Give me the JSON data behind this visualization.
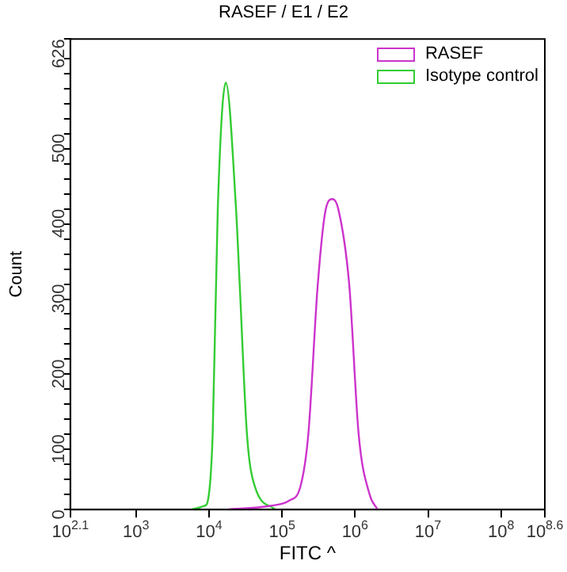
{
  "chart_data": {
    "type": "line",
    "title": "RASEF / E1 / E2",
    "xlabel": "FITC ^",
    "ylabel": "Count",
    "log": "x",
    "xlim": [
      125.9,
      398107171
    ],
    "xticks": [
      {
        "value": 125.9,
        "label": "10$^{2.1}$"
      },
      {
        "value": 1000,
        "label": "10$^{3}$"
      },
      {
        "value": 10000,
        "label": "10$^{4}$"
      },
      {
        "value": 100000,
        "label": "10$^{5}$"
      },
      {
        "value": 1000000,
        "label": "10$^{6}$"
      },
      {
        "value": 10000000,
        "label": "10$^{7}$"
      },
      {
        "value": 100000000,
        "label": "10$^{8}$"
      },
      {
        "value": 398107171,
        "label": "10$^{8.6}$"
      }
    ],
    "ylim": [
      0,
      626
    ],
    "yticks": [
      0,
      {
        "value": 20,
        "label": null
      },
      {
        "value": 40,
        "label": null
      },
      {
        "value": 60,
        "label": null
      },
      {
        "value": 80,
        "label": null
      },
      100,
      {
        "value": 120,
        "label": null
      },
      {
        "value": 140,
        "label": null
      },
      {
        "value": 160,
        "label": null
      },
      {
        "value": 180,
        "label": null
      },
      200,
      {
        "value": 220,
        "label": null
      },
      {
        "value": 240,
        "label": null
      },
      {
        "value": 260,
        "label": null
      },
      {
        "value": 280,
        "label": null
      },
      300,
      {
        "value": 320,
        "label": null
      },
      {
        "value": 340,
        "label": null
      },
      {
        "value": 360,
        "label": null
      },
      {
        "value": 380,
        "label": null
      },
      400,
      {
        "value": 420,
        "label": null
      },
      {
        "value": 440,
        "label": null
      },
      {
        "value": 460,
        "label": null
      },
      {
        "value": 480,
        "label": null
      },
      500,
      {
        "value": 520,
        "label": null
      },
      {
        "value": 540,
        "label": null
      },
      {
        "value": 560,
        "label": null
      },
      {
        "value": 580,
        "label": null
      },
      {
        "value": 600,
        "label": null
      },
      626
    ],
    "grid": false,
    "legend": "top right",
    "marker": "none",
    "line_style": "solid",
    "series": [
      {
        "name": "RASEF",
        "color": "#cc33cc",
        "x": [
          16982,
          69183,
          125893,
          177828,
          229087,
          309030,
          398107,
          489779,
          588844,
          831764,
          1122018,
          1584893,
          2041738
        ],
        "values": [
          0,
          5,
          12,
          30,
          100,
          300,
          400,
          413,
          400,
          300,
          100,
          20,
          0
        ]
      },
      {
        "name": "Isotype control",
        "color": "#33cc33",
        "x": [
          5754,
          8710,
          9550,
          11220,
          13183,
          16982,
          23442,
          26303,
          33113,
          42658,
          81283
        ],
        "values": [
          0,
          5,
          10,
          100,
          400,
          568,
          400,
          300,
          100,
          30,
          0
        ]
      }
    ]
  }
}
